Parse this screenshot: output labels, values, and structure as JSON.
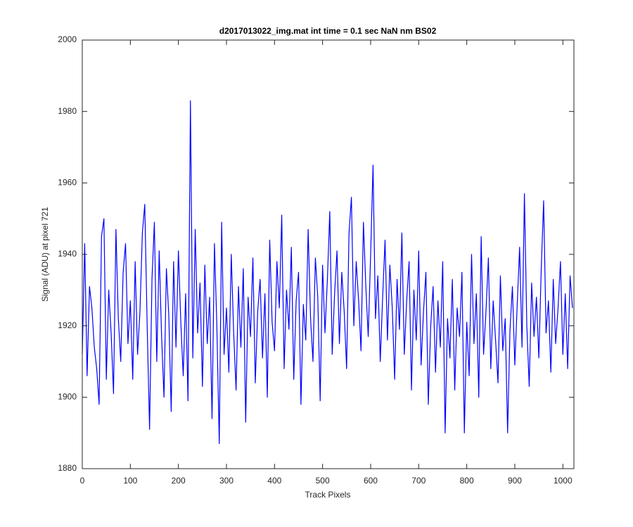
{
  "chart_data": {
    "type": "line",
    "title": "d2017013022_img.mat int time = 0.1 sec  NaN nm BS02",
    "x_label": "Track Pixels",
    "y_label": "Signal (ADU) at pixel 721",
    "xlim": [
      0,
      1023
    ],
    "xticks": [
      0,
      100,
      200,
      300,
      400,
      500,
      600,
      700,
      800,
      900,
      1000
    ],
    "ylim": [
      1880,
      2000
    ],
    "yticks": [
      1880,
      1900,
      1920,
      1940,
      1960,
      1980,
      2000
    ],
    "grid": false,
    "x": [
      0,
      5,
      10,
      15,
      20,
      25,
      30,
      35,
      40,
      45,
      50,
      55,
      60,
      65,
      70,
      75,
      80,
      85,
      90,
      95,
      100,
      105,
      110,
      115,
      120,
      125,
      130,
      135,
      140,
      145,
      150,
      155,
      160,
      165,
      170,
      175,
      180,
      185,
      190,
      195,
      200,
      205,
      210,
      215,
      220,
      225,
      230,
      235,
      240,
      245,
      250,
      255,
      260,
      265,
      270,
      275,
      280,
      285,
      290,
      295,
      300,
      305,
      310,
      315,
      320,
      325,
      330,
      335,
      340,
      345,
      350,
      355,
      360,
      365,
      370,
      375,
      380,
      385,
      390,
      395,
      400,
      405,
      410,
      415,
      420,
      425,
      430,
      435,
      440,
      445,
      450,
      455,
      460,
      465,
      470,
      475,
      480,
      485,
      490,
      495,
      500,
      505,
      510,
      515,
      520,
      525,
      530,
      535,
      540,
      545,
      550,
      555,
      560,
      565,
      570,
      575,
      580,
      585,
      590,
      595,
      600,
      605,
      610,
      615,
      620,
      625,
      630,
      635,
      640,
      645,
      650,
      655,
      660,
      665,
      670,
      675,
      680,
      685,
      690,
      695,
      700,
      705,
      710,
      715,
      720,
      725,
      730,
      735,
      740,
      745,
      750,
      755,
      760,
      765,
      770,
      775,
      780,
      785,
      790,
      795,
      800,
      805,
      810,
      815,
      820,
      825,
      830,
      835,
      840,
      845,
      850,
      855,
      860,
      865,
      870,
      875,
      880,
      885,
      890,
      895,
      900,
      905,
      910,
      915,
      920,
      925,
      930,
      935,
      940,
      945,
      950,
      955,
      960,
      965,
      970,
      975,
      980,
      985,
      990,
      995,
      1000,
      1005,
      1010,
      1015,
      1020
    ],
    "series": [
      {
        "color": "#0000ff",
        "values": [
          1912,
          1943,
          1906,
          1931,
          1925,
          1914,
          1908,
          1898,
          1945,
          1950,
          1905,
          1930,
          1918,
          1901,
          1947,
          1922,
          1910,
          1935,
          1943,
          1915,
          1927,
          1905,
          1938,
          1912,
          1924,
          1946,
          1954,
          1920,
          1891,
          1933,
          1949,
          1910,
          1941,
          1917,
          1900,
          1936,
          1923,
          1896,
          1938,
          1914,
          1941,
          1921,
          1906,
          1929,
          1899,
          1983,
          1911,
          1947,
          1918,
          1932,
          1903,
          1937,
          1915,
          1928,
          1894,
          1943,
          1920,
          1887,
          1949,
          1912,
          1925,
          1907,
          1940,
          1918,
          1902,
          1931,
          1914,
          1936,
          1893,
          1928,
          1917,
          1939,
          1904,
          1924,
          1933,
          1911,
          1929,
          1900,
          1944,
          1921,
          1913,
          1938,
          1925,
          1951,
          1908,
          1930,
          1919,
          1942,
          1905,
          1927,
          1935,
          1898,
          1926,
          1916,
          1947,
          1922,
          1910,
          1939,
          1928,
          1899,
          1937,
          1918,
          1933,
          1952,
          1912,
          1929,
          1941,
          1915,
          1935,
          1924,
          1908,
          1946,
          1956,
          1920,
          1938,
          1927,
          1913,
          1949,
          1931,
          1917,
          1940,
          1965,
          1922,
          1934,
          1910,
          1928,
          1944,
          1916,
          1937,
          1925,
          1905,
          1933,
          1919,
          1946,
          1912,
          1927,
          1938,
          1902,
          1930,
          1916,
          1941,
          1909,
          1924,
          1935,
          1898,
          1920,
          1931,
          1907,
          1927,
          1914,
          1938,
          1890,
          1922,
          1911,
          1933,
          1902,
          1925,
          1917,
          1935,
          1890,
          1921,
          1906,
          1940,
          1915,
          1929,
          1900,
          1945,
          1912,
          1924,
          1939,
          1908,
          1927,
          1916,
          1904,
          1934,
          1913,
          1922,
          1890,
          1919,
          1931,
          1909,
          1926,
          1942,
          1914,
          1957,
          1920,
          1903,
          1932,
          1917,
          1928,
          1911,
          1936,
          1955,
          1918,
          1927,
          1907,
          1933,
          1915,
          1925,
          1938,
          1912,
          1929,
          1908,
          1934,
          1925
        ]
      }
    ]
  }
}
